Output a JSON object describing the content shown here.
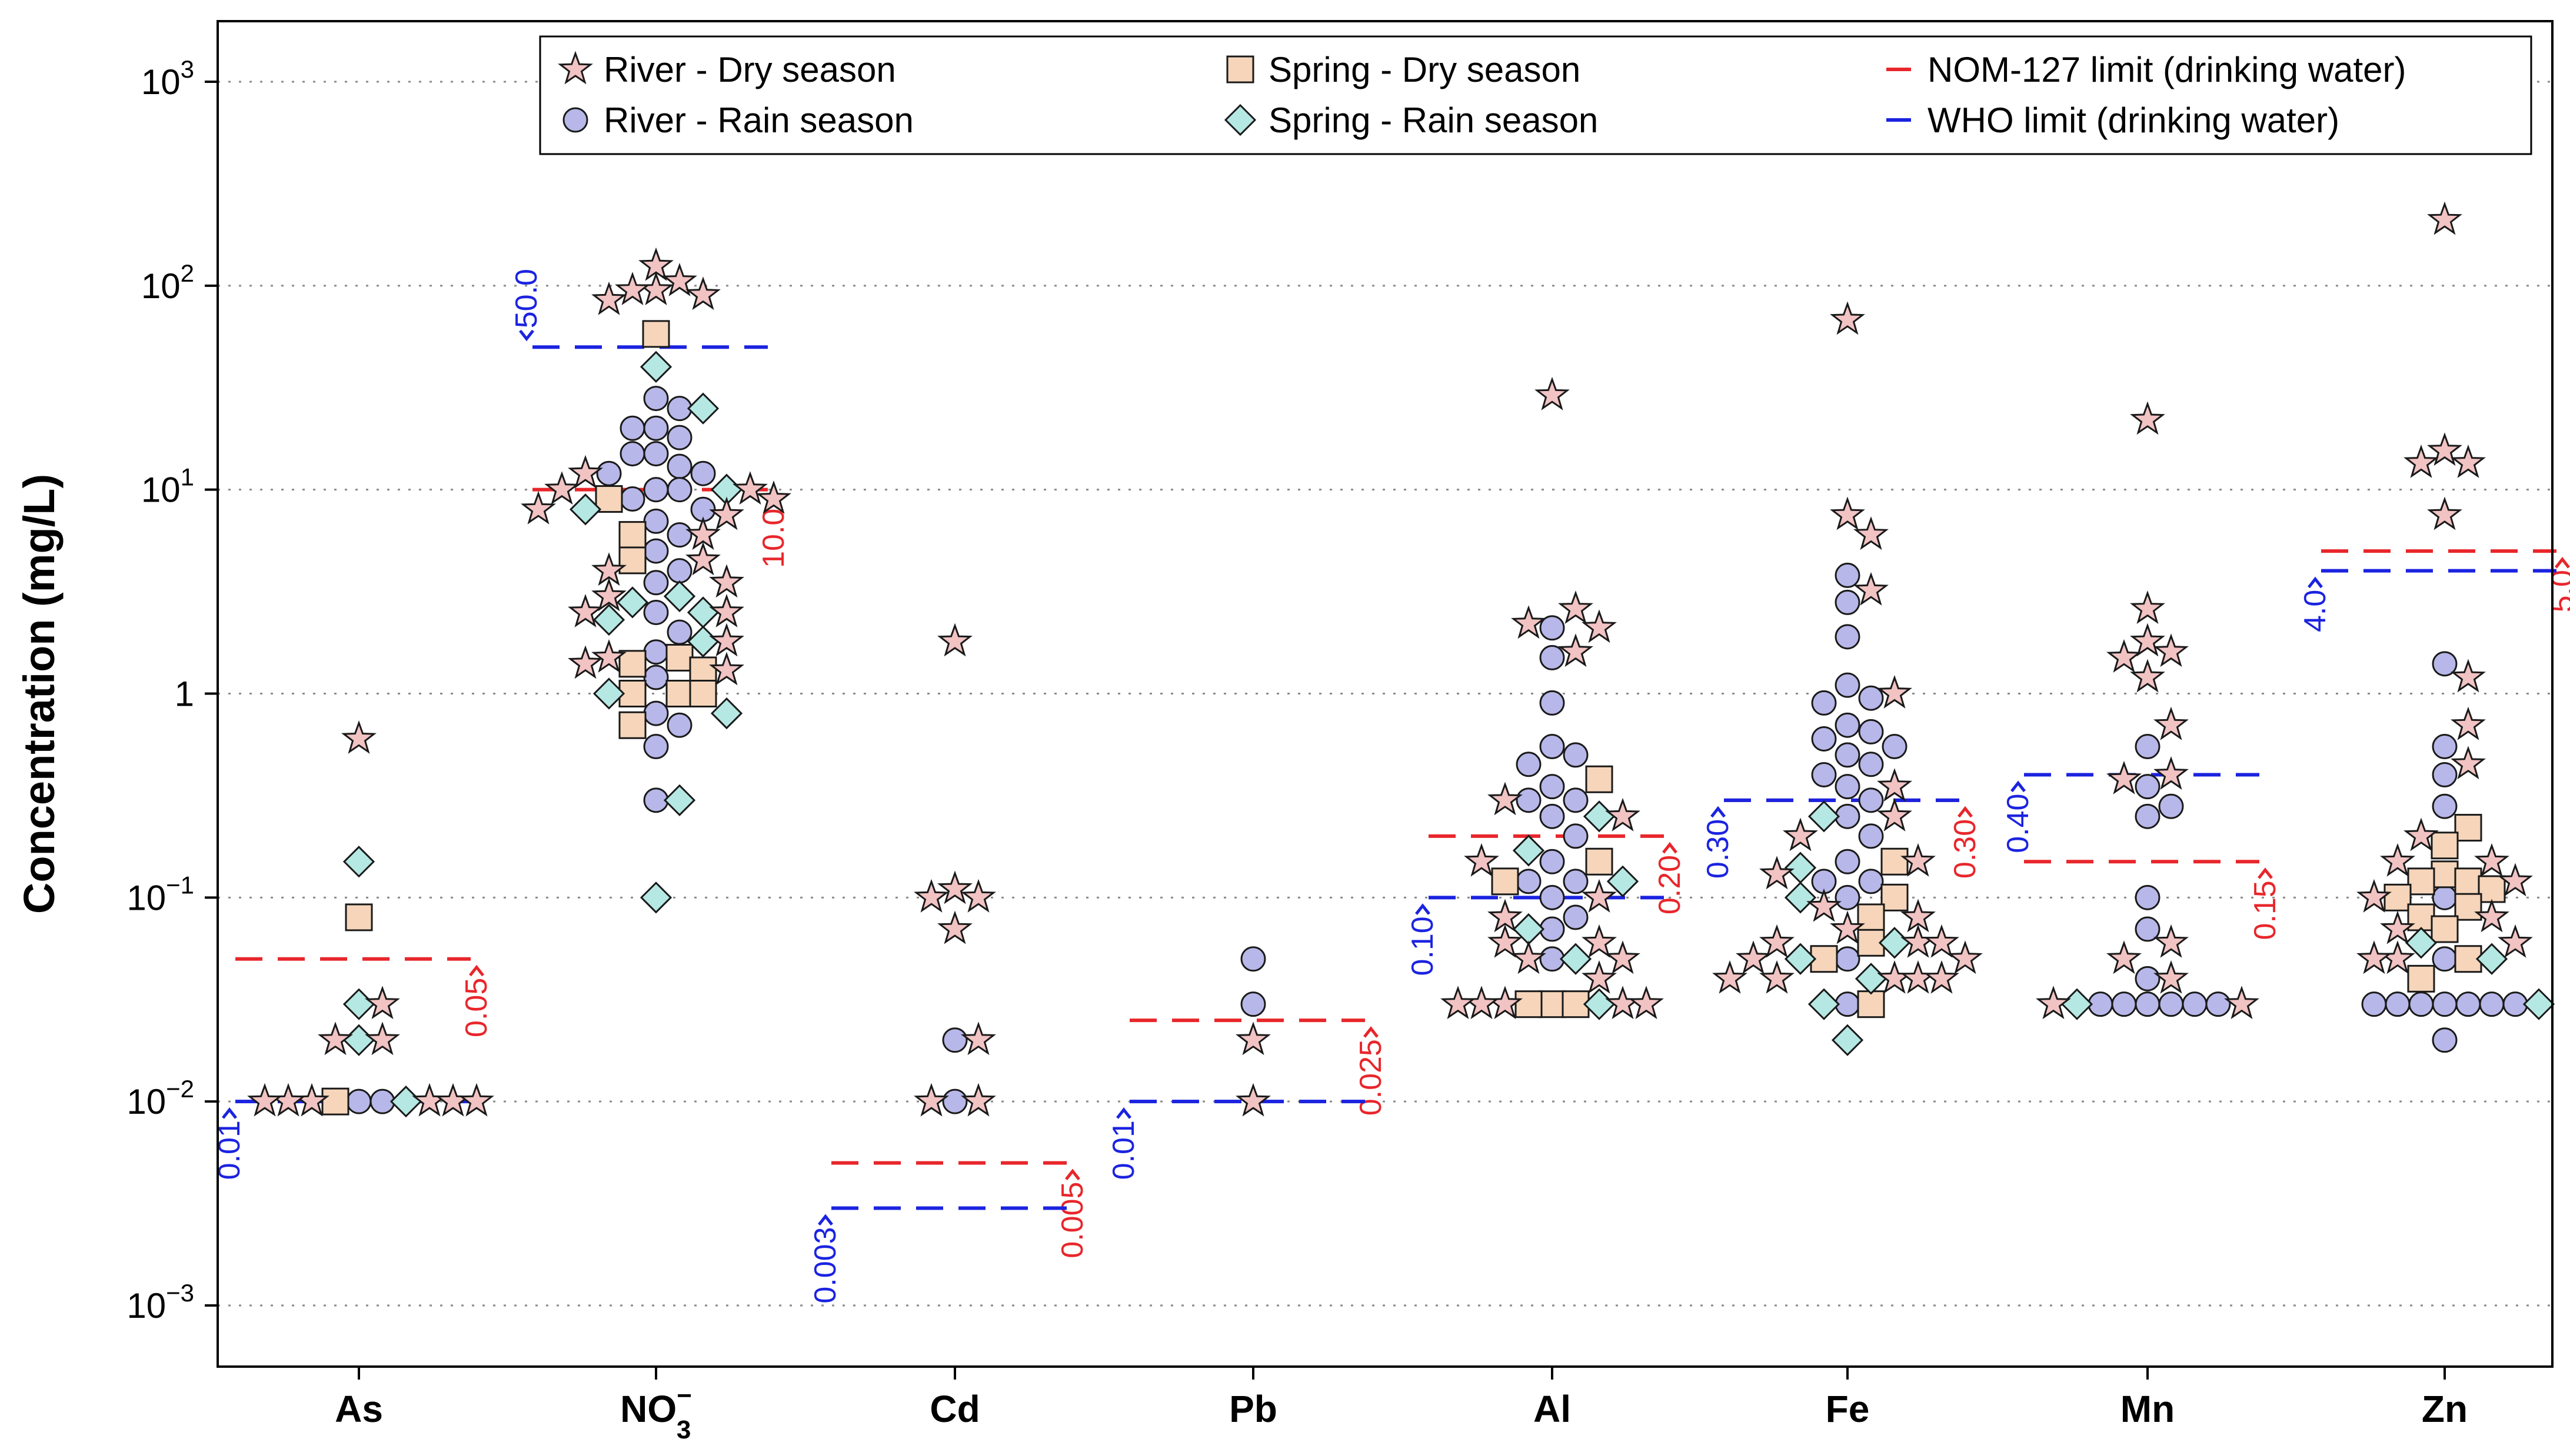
{
  "chart_data": {
    "type": "scatter",
    "title": "",
    "xlabel": "",
    "ylabel": "Concentration (mg/L)",
    "y_scale": "log10",
    "ylim": [
      0.0005,
      2000
    ],
    "y_ticks": [
      {
        "value": 0.001,
        "base": "10",
        "exp": "−3"
      },
      {
        "value": 0.01,
        "base": "10",
        "exp": "−2"
      },
      {
        "value": 0.1,
        "base": "10",
        "exp": "−1"
      },
      {
        "value": 1,
        "base": "1",
        "exp": ""
      },
      {
        "value": 10,
        "base": "10",
        "exp": "1"
      },
      {
        "value": 100,
        "base": "10",
        "exp": "2"
      },
      {
        "value": 1000,
        "base": "10",
        "exp": "3"
      }
    ],
    "grid": "horizontal dotted",
    "legend_position": "top",
    "categories": [
      {
        "key": "As",
        "label": "As",
        "sub": "",
        "sup": ""
      },
      {
        "key": "NO3",
        "label": "NO",
        "sub": "3",
        "sup": "−"
      },
      {
        "key": "Cd",
        "label": "Cd",
        "sub": "",
        "sup": ""
      },
      {
        "key": "Pb",
        "label": "Pb",
        "sub": "",
        "sup": ""
      },
      {
        "key": "Al",
        "label": "Al",
        "sub": "",
        "sup": ""
      },
      {
        "key": "Fe",
        "label": "Fe",
        "sub": "",
        "sup": ""
      },
      {
        "key": "Mn",
        "label": "Mn",
        "sub": "",
        "sup": ""
      },
      {
        "key": "Zn",
        "label": "Zn",
        "sub": "",
        "sup": ""
      }
    ],
    "legend": [
      {
        "key": "river_dry",
        "label": "River - Dry season",
        "marker": "star"
      },
      {
        "key": "river_rain",
        "label": "River - Rain season",
        "marker": "circle"
      },
      {
        "key": "spring_dry",
        "label": "Spring - Dry season",
        "marker": "square"
      },
      {
        "key": "spring_rain",
        "label": "Spring - Rain season",
        "marker": "diamond"
      },
      {
        "key": "nom",
        "label": "NOM-127 limit (drinking water)",
        "marker": "line"
      },
      {
        "key": "who",
        "label": "WHO limit (drinking water)",
        "marker": "line"
      }
    ],
    "series": [
      {
        "name": "River - Dry season",
        "marker": "star",
        "color": "#f2c3c3",
        "points": {
          "As": [
            0.6,
            0.03,
            0.02,
            0.02,
            0.01,
            0.01,
            0.01,
            0.01,
            0.01,
            0.01
          ],
          "NO3": [
            125,
            105,
            95,
            95,
            90,
            85,
            12,
            10,
            10,
            9,
            8,
            7.5,
            6,
            4.5,
            4,
            3.5,
            3,
            2.5,
            2.5,
            1.8,
            1.5,
            1.4,
            1.3
          ],
          "Cd": [
            1.8,
            0.11,
            0.1,
            0.1,
            0.07,
            0.02,
            0.01,
            0.01
          ],
          "Pb": [
            0.02,
            0.01
          ],
          "Al": [
            29,
            2.6,
            2.2,
            2.1,
            1.6,
            0.3,
            0.25,
            0.15,
            0.1,
            0.08,
            0.06,
            0.06,
            0.05,
            0.05,
            0.04,
            0.03,
            0.03,
            0.03,
            0.03,
            0.03
          ],
          "Fe": [
            68,
            7.5,
            6,
            3.2,
            1.0,
            0.35,
            0.25,
            0.2,
            0.15,
            0.13,
            0.09,
            0.08,
            0.07,
            0.06,
            0.06,
            0.06,
            0.05,
            0.05,
            0.04,
            0.04,
            0.04,
            0.04,
            0.04
          ],
          "Mn": [
            22,
            2.6,
            1.8,
            1.6,
            1.5,
            1.2,
            0.7,
            0.4,
            0.38,
            0.06,
            0.05,
            0.04,
            0.03,
            0.03
          ],
          "Zn": [
            210,
            15.5,
            13.5,
            13.5,
            7.5,
            1.2,
            0.7,
            0.45,
            0.2,
            0.15,
            0.15,
            0.12,
            0.1,
            0.08,
            0.07,
            0.06,
            0.05,
            0.05
          ]
        }
      },
      {
        "name": "River - Rain season",
        "marker": "circle",
        "color": "#b7b7e9",
        "points": {
          "As": [
            0.01,
            0.01
          ],
          "NO3": [
            28,
            25,
            20,
            20,
            18,
            15,
            15,
            13,
            12,
            12,
            10,
            10,
            9,
            8,
            7,
            6,
            5,
            4,
            3.5,
            2.5,
            2,
            1.6,
            1.2,
            0.8,
            0.7,
            0.55,
            0.3
          ],
          "Cd": [
            0.02,
            0.01
          ],
          "Pb": [
            0.05,
            0.03
          ],
          "Al": [
            2.1,
            1.5,
            0.9,
            0.55,
            0.5,
            0.45,
            0.35,
            0.3,
            0.3,
            0.25,
            0.2,
            0.15,
            0.12,
            0.12,
            0.1,
            0.08,
            0.07,
            0.05
          ],
          "Fe": [
            3.8,
            2.8,
            1.9,
            1.1,
            0.95,
            0.9,
            0.7,
            0.65,
            0.6,
            0.55,
            0.5,
            0.45,
            0.4,
            0.35,
            0.3,
            0.25,
            0.2,
            0.15,
            0.12,
            0.12,
            0.1,
            0.05,
            0.03
          ],
          "Mn": [
            0.55,
            0.35,
            0.28,
            0.25,
            0.1,
            0.07,
            0.04,
            0.03,
            0.03,
            0.03,
            0.03,
            0.03,
            0.03
          ],
          "Zn": [
            1.4,
            0.55,
            0.4,
            0.28,
            0.1,
            0.05,
            0.03,
            0.03,
            0.03,
            0.03,
            0.03,
            0.03,
            0.03,
            0.02
          ]
        }
      },
      {
        "name": "Spring - Dry season",
        "marker": "square",
        "color": "#f6d5ba",
        "points": {
          "As": [
            0.08,
            0.01
          ],
          "NO3": [
            58,
            9,
            6,
            4.5,
            1.5,
            1.4,
            1.3,
            1.0,
            1.0,
            1.0,
            0.7
          ],
          "Al": [
            0.38,
            0.15,
            0.12,
            0.03,
            0.03,
            0.03
          ],
          "Fe": [
            0.15,
            0.1,
            0.08,
            0.06,
            0.05,
            0.03
          ],
          "Zn": [
            0.22,
            0.18,
            0.13,
            0.12,
            0.12,
            0.11,
            0.1,
            0.09,
            0.08,
            0.07,
            0.05,
            0.04
          ]
        }
      },
      {
        "name": "Spring - Rain season",
        "marker": "diamond",
        "color": "#b5e8e2",
        "points": {
          "As": [
            0.15,
            0.03,
            0.02,
            0.01
          ],
          "NO3": [
            40,
            25,
            10,
            8,
            3,
            2.8,
            2.5,
            2.3,
            1.8,
            1.0,
            0.8,
            0.3,
            0.1
          ],
          "Al": [
            0.25,
            0.17,
            0.12,
            0.07,
            0.05,
            0.03
          ],
          "Fe": [
            0.25,
            0.14,
            0.1,
            0.06,
            0.05,
            0.04,
            0.03,
            0.02
          ],
          "Mn": [
            0.03
          ],
          "Zn": [
            0.06,
            0.05,
            0.03
          ]
        }
      }
    ],
    "limits": [
      {
        "category": "As",
        "nom": 0.05,
        "nom_label": "0.05",
        "who": 0.01,
        "who_label": "0.01"
      },
      {
        "category": "NO3",
        "nom": 10,
        "nom_label": "10.0",
        "who": 50,
        "who_label": "50.0"
      },
      {
        "category": "Cd",
        "nom": 0.005,
        "nom_label": "0.005",
        "who": 0.003,
        "who_label": "0.003"
      },
      {
        "category": "Pb",
        "nom": 0.025,
        "nom_label": "0.025",
        "who": 0.01,
        "who_label": "0.01"
      },
      {
        "category": "Al",
        "nom": 0.2,
        "nom_label": "0.20",
        "who": 0.1,
        "who_label": "0.10"
      },
      {
        "category": "Fe",
        "nom": 0.3,
        "nom_label": "0.30",
        "who": 0.3,
        "who_label": "0.30"
      },
      {
        "category": "Mn",
        "nom": 0.15,
        "nom_label": "0.15",
        "who": 0.4,
        "who_label": "0.40"
      },
      {
        "category": "Zn",
        "nom": 5.0,
        "nom_label": "5.0",
        "who": 4.0,
        "who_label": "4.0"
      }
    ],
    "colors": {
      "nom": "#e8262b",
      "who": "#1b23e0",
      "river_dry": "#f2c3c3",
      "river_rain": "#b7b7e9",
      "spring_dry": "#f6d5ba",
      "spring_rain": "#b5e8e2",
      "grid": "#8a8a8a",
      "axis": "#000000"
    }
  }
}
